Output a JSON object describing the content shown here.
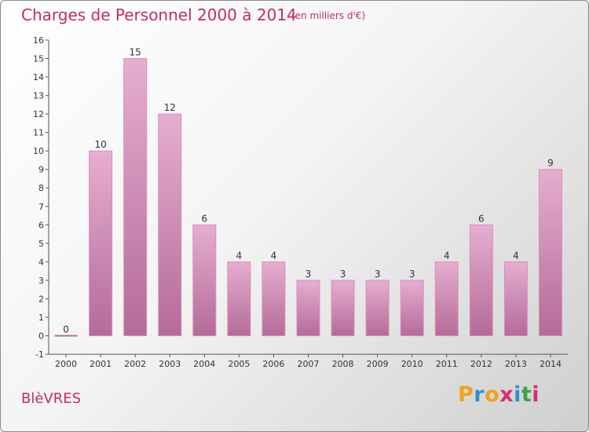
{
  "header": {
    "title": "Charges de Personnel 2000 à 2014",
    "subtitle": "(en milliers d'€)"
  },
  "footer": {
    "commune": "BlèVRES",
    "logo_letters": [
      "P",
      "r",
      "o",
      "x",
      "i",
      "t",
      "i"
    ],
    "logo_colors": [
      "#f0a21a",
      "#2e8fd0",
      "#f0a21a",
      "#d62f6e",
      "#2e8fd0",
      "#3aa348",
      "#d62f6e"
    ]
  },
  "chart_data": {
    "type": "bar",
    "categories": [
      "2000",
      "2001",
      "2002",
      "2003",
      "2004",
      "2005",
      "2006",
      "2007",
      "2008",
      "2009",
      "2010",
      "2011",
      "2012",
      "2013",
      "2014"
    ],
    "values": [
      0,
      10,
      15,
      12,
      6,
      4,
      4,
      3,
      3,
      3,
      3,
      4,
      6,
      4,
      9
    ],
    "ylim": [
      -1,
      16
    ],
    "yticks": [
      -1,
      0,
      1,
      2,
      3,
      4,
      5,
      6,
      7,
      8,
      9,
      10,
      11,
      12,
      13,
      14,
      15,
      16
    ],
    "grid": false,
    "colors": {
      "bar_light": "#e6aed0",
      "bar_dark": "#b46b98",
      "bar_stroke": "#d88fbb",
      "axis": "#555555"
    }
  }
}
